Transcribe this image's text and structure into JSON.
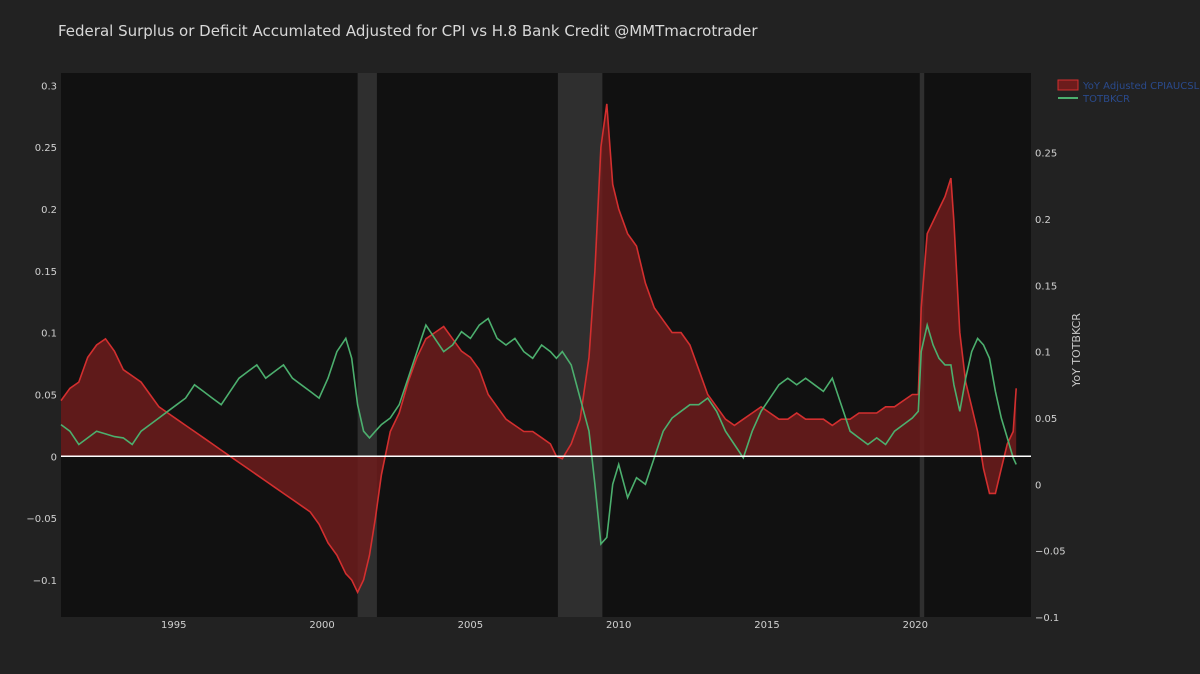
{
  "chart_data": {
    "type": "area",
    "title": "Federal Surplus or Deficit Accumlated Adjusted for CPI vs H.8 Bank Credit @MMTmacrotrader",
    "xlabel": "",
    "ylabel": "",
    "y2label": "YoY TOTBKCR",
    "xlim": [
      1991.2,
      2023.9
    ],
    "ylim": [
      -0.13,
      0.31
    ],
    "y2lim": [
      -0.1,
      0.31
    ],
    "x_ticks": [
      1995,
      2000,
      2005,
      2010,
      2015,
      2020
    ],
    "y_ticks": [
      {
        "value": 0.3,
        "label": "0.3"
      },
      {
        "value": 0.25,
        "label": "0.25"
      },
      {
        "value": 0.2,
        "label": "0.2"
      },
      {
        "value": 0.15,
        "label": "0.15"
      },
      {
        "value": 0.1,
        "label": "0.1"
      },
      {
        "value": 0.05,
        "label": "0.05"
      },
      {
        "value": 0,
        "label": "0"
      },
      {
        "value": -0.05,
        "label": "−0.05"
      },
      {
        "value": -0.1,
        "label": "−0.1"
      }
    ],
    "y2_ticks": [
      {
        "value": 0.25,
        "label": "0.25"
      },
      {
        "value": 0.2,
        "label": "0.2"
      },
      {
        "value": 0.15,
        "label": "0.15"
      },
      {
        "value": 0.1,
        "label": "0.1"
      },
      {
        "value": 0.05,
        "label": "0.05"
      },
      {
        "value": 0,
        "label": "0"
      },
      {
        "value": -0.05,
        "label": "−0.05"
      },
      {
        "value": -0.1,
        "label": "−0.1"
      }
    ],
    "recessions": [
      [
        2001.2,
        2001.85
      ],
      [
        2007.95,
        2009.45
      ],
      [
        2020.15,
        2020.3
      ]
    ],
    "legend_placement": "top-right",
    "grid": false,
    "series": [
      {
        "name": "YoY Adjusted CPIAUCSL",
        "axis": "y",
        "kind": "area",
        "color": "#d32f2f",
        "fill": "#6d1c1c",
        "x": [
          1991.2,
          1991.5,
          1991.8,
          1992.1,
          1992.4,
          1992.7,
          1993.0,
          1993.3,
          1993.6,
          1993.9,
          1994.2,
          1994.5,
          1994.8,
          1995.1,
          1995.4,
          1995.7,
          1996.0,
          1996.3,
          1996.6,
          1996.9,
          1997.2,
          1997.5,
          1997.8,
          1998.1,
          1998.4,
          1998.7,
          1999.0,
          1999.3,
          1999.6,
          1999.9,
          2000.2,
          2000.5,
          2000.8,
          2001.0,
          2001.2,
          2001.4,
          2001.6,
          2001.8,
          2002.0,
          2002.3,
          2002.6,
          2002.9,
          2003.2,
          2003.5,
          2003.8,
          2004.1,
          2004.4,
          2004.7,
          2005.0,
          2005.3,
          2005.6,
          2005.9,
          2006.2,
          2006.5,
          2006.8,
          2007.1,
          2007.4,
          2007.7,
          2007.9,
          2008.1,
          2008.4,
          2008.7,
          2009.0,
          2009.2,
          2009.4,
          2009.6,
          2009.8,
          2010.0,
          2010.3,
          2010.6,
          2010.9,
          2011.2,
          2011.5,
          2011.8,
          2012.1,
          2012.4,
          2012.7,
          2013.0,
          2013.3,
          2013.6,
          2013.9,
          2014.2,
          2014.5,
          2014.8,
          2015.1,
          2015.4,
          2015.7,
          2016.0,
          2016.3,
          2016.6,
          2016.9,
          2017.2,
          2017.5,
          2017.8,
          2018.1,
          2018.4,
          2018.7,
          2019.0,
          2019.3,
          2019.6,
          2019.9,
          2020.1,
          2020.2,
          2020.4,
          2020.6,
          2020.8,
          2021.0,
          2021.2,
          2021.3,
          2021.5,
          2021.7,
          2021.9,
          2022.1,
          2022.3,
          2022.5,
          2022.7,
          2022.9,
          2023.1,
          2023.3,
          2023.4
        ],
        "values": [
          0.045,
          0.055,
          0.06,
          0.08,
          0.09,
          0.095,
          0.085,
          0.07,
          0.065,
          0.06,
          0.05,
          0.04,
          0.035,
          0.03,
          0.025,
          0.02,
          0.015,
          0.01,
          0.005,
          0.0,
          -0.005,
          -0.01,
          -0.015,
          -0.02,
          -0.025,
          -0.03,
          -0.035,
          -0.04,
          -0.045,
          -0.055,
          -0.07,
          -0.08,
          -0.095,
          -0.1,
          -0.11,
          -0.1,
          -0.08,
          -0.05,
          -0.015,
          0.02,
          0.035,
          0.06,
          0.08,
          0.095,
          0.1,
          0.105,
          0.095,
          0.085,
          0.08,
          0.07,
          0.05,
          0.04,
          0.03,
          0.025,
          0.02,
          0.02,
          0.015,
          0.01,
          0.0,
          -0.002,
          0.01,
          0.03,
          0.08,
          0.15,
          0.25,
          0.285,
          0.22,
          0.2,
          0.18,
          0.17,
          0.14,
          0.12,
          0.11,
          0.1,
          0.1,
          0.09,
          0.07,
          0.05,
          0.04,
          0.03,
          0.025,
          0.03,
          0.035,
          0.04,
          0.035,
          0.03,
          0.03,
          0.035,
          0.03,
          0.03,
          0.03,
          0.025,
          0.03,
          0.03,
          0.035,
          0.035,
          0.035,
          0.04,
          0.04,
          0.045,
          0.05,
          0.05,
          0.12,
          0.18,
          0.19,
          0.2,
          0.21,
          0.225,
          0.19,
          0.1,
          0.06,
          0.04,
          0.02,
          -0.01,
          -0.03,
          -0.03,
          -0.01,
          0.01,
          0.02,
          0.055
        ]
      },
      {
        "name": "TOTBKCR",
        "axis": "y2",
        "kind": "line",
        "color": "#4caf6e",
        "x": [
          1991.2,
          1991.5,
          1991.8,
          1992.1,
          1992.4,
          1992.7,
          1993.0,
          1993.3,
          1993.6,
          1993.9,
          1994.2,
          1994.5,
          1994.8,
          1995.1,
          1995.4,
          1995.7,
          1996.0,
          1996.3,
          1996.6,
          1996.9,
          1997.2,
          1997.5,
          1997.8,
          1998.1,
          1998.4,
          1998.7,
          1999.0,
          1999.3,
          1999.6,
          1999.9,
          2000.2,
          2000.5,
          2000.8,
          2001.0,
          2001.2,
          2001.4,
          2001.6,
          2001.8,
          2002.0,
          2002.3,
          2002.6,
          2002.9,
          2003.2,
          2003.5,
          2003.8,
          2004.1,
          2004.4,
          2004.7,
          2005.0,
          2005.3,
          2005.6,
          2005.9,
          2006.2,
          2006.5,
          2006.8,
          2007.1,
          2007.4,
          2007.7,
          2007.9,
          2008.1,
          2008.4,
          2008.7,
          2009.0,
          2009.2,
          2009.4,
          2009.6,
          2009.8,
          2010.0,
          2010.3,
          2010.6,
          2010.9,
          2011.2,
          2011.5,
          2011.8,
          2012.1,
          2012.4,
          2012.7,
          2013.0,
          2013.3,
          2013.6,
          2013.9,
          2014.2,
          2014.5,
          2014.8,
          2015.1,
          2015.4,
          2015.7,
          2016.0,
          2016.3,
          2016.6,
          2016.9,
          2017.2,
          2017.5,
          2017.8,
          2018.1,
          2018.4,
          2018.7,
          2019.0,
          2019.3,
          2019.6,
          2019.9,
          2020.1,
          2020.2,
          2020.4,
          2020.6,
          2020.8,
          2021.0,
          2021.2,
          2021.3,
          2021.5,
          2021.7,
          2021.9,
          2022.1,
          2022.3,
          2022.5,
          2022.7,
          2022.9,
          2023.1,
          2023.3,
          2023.4
        ],
        "values": [
          0.045,
          0.04,
          0.03,
          0.035,
          0.04,
          0.038,
          0.036,
          0.035,
          0.03,
          0.04,
          0.045,
          0.05,
          0.055,
          0.06,
          0.065,
          0.075,
          0.07,
          0.065,
          0.06,
          0.07,
          0.08,
          0.085,
          0.09,
          0.08,
          0.085,
          0.09,
          0.08,
          0.075,
          0.07,
          0.065,
          0.08,
          0.1,
          0.11,
          0.095,
          0.06,
          0.04,
          0.035,
          0.04,
          0.045,
          0.05,
          0.06,
          0.08,
          0.1,
          0.12,
          0.11,
          0.1,
          0.105,
          0.115,
          0.11,
          0.12,
          0.125,
          0.11,
          0.105,
          0.11,
          0.1,
          0.095,
          0.105,
          0.1,
          0.095,
          0.1,
          0.09,
          0.065,
          0.04,
          0.0,
          -0.045,
          -0.04,
          0.0,
          0.015,
          -0.01,
          0.005,
          0.0,
          0.02,
          0.04,
          0.05,
          0.055,
          0.06,
          0.06,
          0.065,
          0.055,
          0.04,
          0.03,
          0.02,
          0.04,
          0.055,
          0.065,
          0.075,
          0.08,
          0.075,
          0.08,
          0.075,
          0.07,
          0.08,
          0.06,
          0.04,
          0.035,
          0.03,
          0.035,
          0.03,
          0.04,
          0.045,
          0.05,
          0.055,
          0.1,
          0.12,
          0.105,
          0.095,
          0.09,
          0.09,
          0.075,
          0.055,
          0.08,
          0.1,
          0.11,
          0.105,
          0.095,
          0.07,
          0.05,
          0.035,
          0.02,
          0.015
        ]
      }
    ]
  }
}
